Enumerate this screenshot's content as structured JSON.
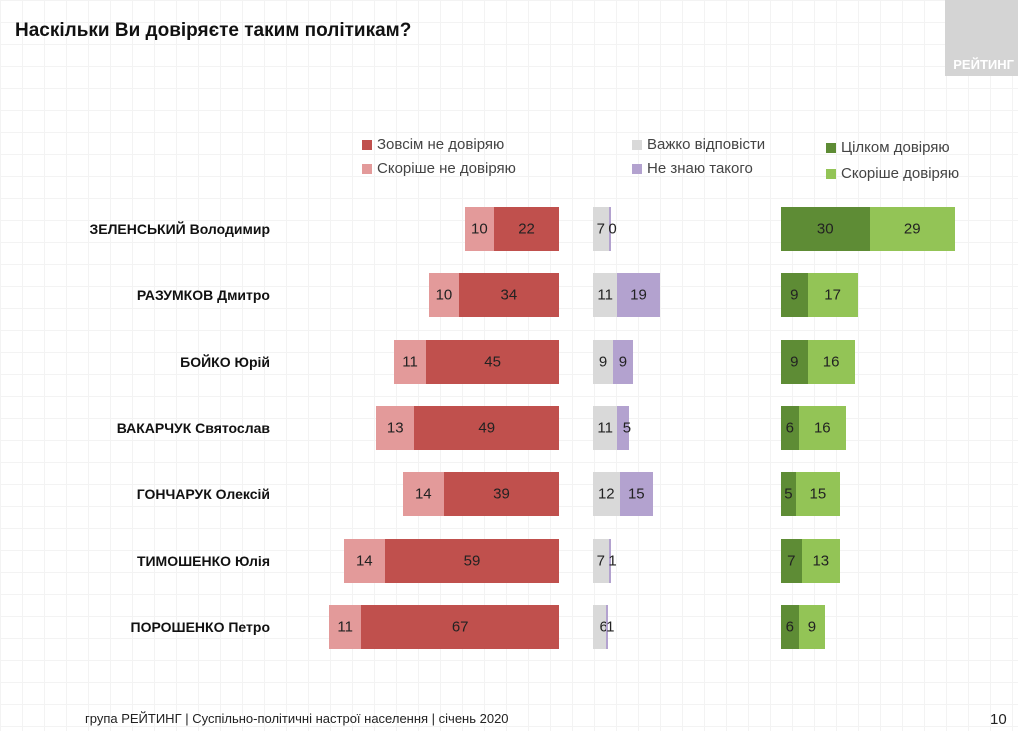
{
  "title": "Наскільки Ви довіряєте таким політикам?",
  "logo_text": "РЕЙТИНГ",
  "footer": "група РЕЙТИНГ | Суспільно-політичні настрої населення  | січень  2020",
  "page_number": "10",
  "chart_data": {
    "type": "bar",
    "orientation": "horizontal-stacked",
    "categories": [
      "ЗЕЛЕНСЬКИЙ Володимир",
      "РАЗУМКОВ Дмитро",
      "БОЙКО Юрій",
      "ВАКАРЧУК Святослав",
      "ГОНЧАРУК Олексій",
      "ТИМОШЕНКО Юлія",
      "ПОРОШЕНКО Петро"
    ],
    "series": [
      {
        "name": "Зовсім не довіряю",
        "color": "#c0504d",
        "group": "distrust",
        "values": [
          22,
          34,
          45,
          49,
          39,
          59,
          67
        ]
      },
      {
        "name": "Скоріше не довіряю",
        "color": "#e39a9a",
        "group": "distrust",
        "values": [
          10,
          10,
          11,
          13,
          14,
          14,
          11
        ]
      },
      {
        "name": "Важко відповісти",
        "color": "#d9d9d9",
        "group": "middle",
        "values": [
          7,
          11,
          9,
          11,
          12,
          7,
          6
        ]
      },
      {
        "name": "Не знаю такого",
        "color": "#b3a2cf",
        "group": "middle",
        "values": [
          0,
          19,
          9,
          5,
          15,
          1,
          1
        ]
      },
      {
        "name": "Цілком довіряю",
        "color": "#5e8c35",
        "group": "trust",
        "values": [
          30,
          9,
          9,
          6,
          5,
          7,
          6
        ]
      },
      {
        "name": "Скоріше довіряю",
        "color": "#93c456",
        "group": "trust",
        "values": [
          29,
          17,
          16,
          16,
          15,
          13,
          9
        ]
      }
    ],
    "unit": "%"
  }
}
